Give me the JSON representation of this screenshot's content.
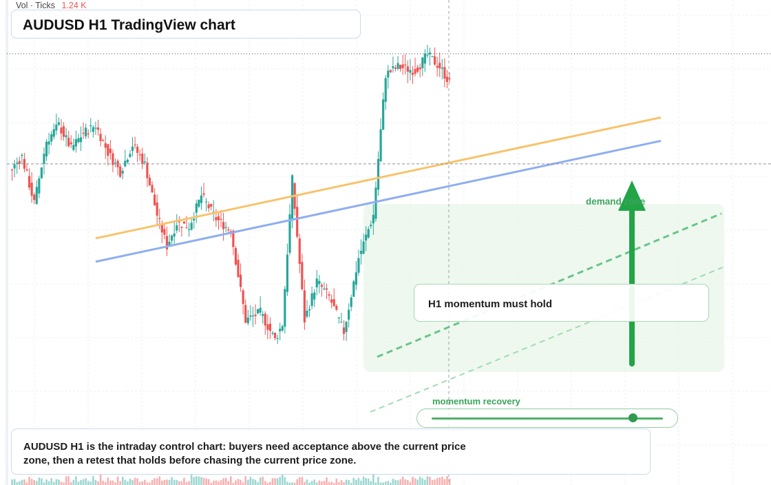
{
  "title": "AUDUSD H1 TradingView chart",
  "volume_readout": {
    "label": "Vol · Ticks",
    "value": "1.24 K"
  },
  "annotations": {
    "zone_label": "demand zone",
    "callout": "H1 momentum must hold",
    "momentum_label": "momentum recovery",
    "momentum_level": 0.87,
    "note": "AUDUSD H1 is the intraday control chart: buyers need acceptance above the current price zone, then a retest that holds before chasing the current price zone."
  },
  "colors": {
    "bull": "#26a69a",
    "bear": "#ef5350",
    "orange_trendline": "#f7c36b",
    "blue_trendline": "#8eaef0",
    "arrow": "#22a447",
    "zone": "#e8f6ea"
  },
  "chart_data": {
    "type": "candlestick",
    "title": "AUDUSD H1 TradingView chart",
    "y_range": [
      0,
      100
    ],
    "candle_count": 180,
    "current_price_index": 60.1,
    "anchors": [
      [
        0,
        58
      ],
      [
        5,
        62
      ],
      [
        10,
        50
      ],
      [
        15,
        66
      ],
      [
        20,
        70
      ],
      [
        25,
        64
      ],
      [
        30,
        68
      ],
      [
        35,
        70
      ],
      [
        40,
        63
      ],
      [
        45,
        58
      ],
      [
        50,
        65
      ],
      [
        55,
        60
      ],
      [
        60,
        47
      ],
      [
        64,
        39
      ],
      [
        68,
        45
      ],
      [
        73,
        44
      ],
      [
        78,
        52
      ],
      [
        84,
        46
      ],
      [
        90,
        43
      ],
      [
        96,
        20
      ],
      [
        102,
        22
      ],
      [
        108,
        15
      ],
      [
        111,
        19
      ],
      [
        115,
        56
      ],
      [
        120,
        20
      ],
      [
        125,
        30
      ],
      [
        130,
        26
      ],
      [
        136,
        17
      ],
      [
        142,
        36
      ],
      [
        148,
        47
      ],
      [
        153,
        83
      ],
      [
        158,
        85
      ],
      [
        165,
        84
      ],
      [
        170,
        88
      ],
      [
        175,
        85
      ],
      [
        182,
        78
      ],
      [
        186,
        92
      ],
      [
        190,
        85
      ],
      [
        197,
        79
      ],
      [
        203,
        85
      ],
      [
        211,
        100
      ],
      [
        216,
        92
      ],
      [
        223,
        80
      ],
      [
        231,
        88
      ],
      [
        240,
        65
      ],
      [
        245,
        56
      ],
      [
        252,
        72
      ],
      [
        260,
        70
      ],
      [
        266,
        86
      ],
      [
        272,
        81
      ],
      [
        280,
        83
      ],
      [
        286,
        93
      ],
      [
        299,
        94
      ]
    ],
    "trendlines": [
      {
        "color": "orange",
        "from": [
          35,
          41
        ],
        "to": [
          265,
          72
        ]
      },
      {
        "color": "blue",
        "from": [
          35,
          35
        ],
        "to": [
          265,
          66
        ]
      }
    ],
    "volume": "per-candle tick volume bars"
  }
}
